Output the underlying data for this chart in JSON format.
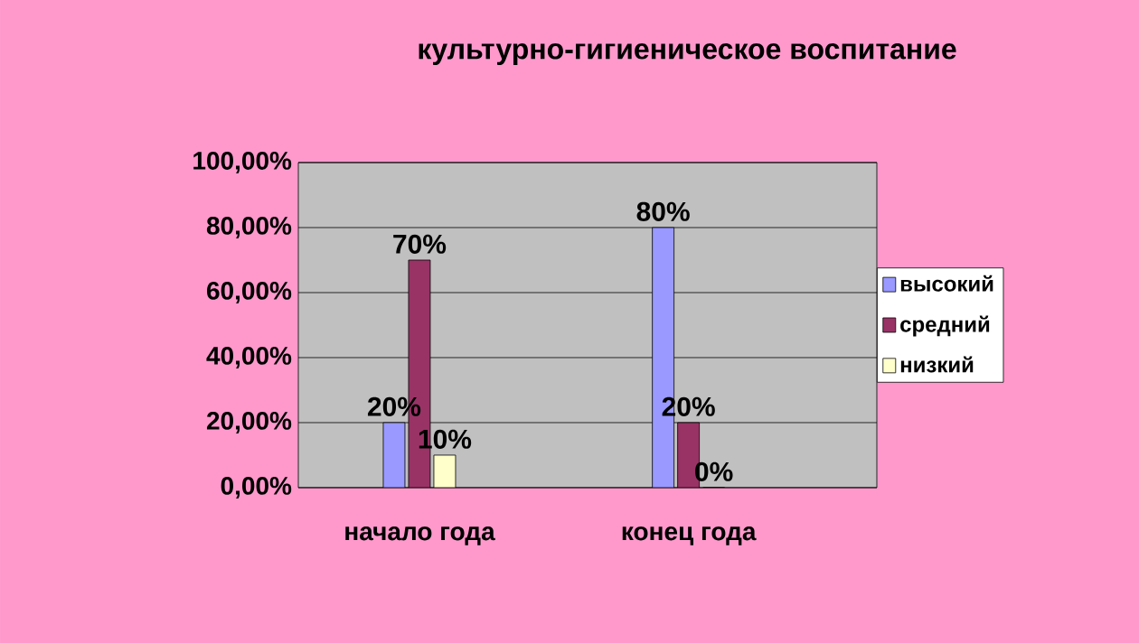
{
  "chart_data": {
    "type": "bar",
    "title": "культурно-гигиеническое воспитание",
    "categories": [
      "начало года",
      "конец года"
    ],
    "series": [
      {
        "name": "высокий",
        "color": "#9999ff",
        "values": [
          20,
          80
        ],
        "value_labels": [
          "20%",
          "80%"
        ]
      },
      {
        "name": "средний",
        "color": "#993366",
        "values": [
          70,
          20
        ],
        "value_labels": [
          "70%",
          "20%"
        ]
      },
      {
        "name": "низкий",
        "color": "#ffffcc",
        "values": [
          10,
          0
        ],
        "value_labels": [
          "10%",
          "0%"
        ]
      }
    ],
    "ylim": [
      0,
      100
    ],
    "yticks": [
      {
        "value": 0,
        "label": "0,00%"
      },
      {
        "value": 20,
        "label": "20,00%"
      },
      {
        "value": 40,
        "label": "40,00%"
      },
      {
        "value": 60,
        "label": "60,00%"
      },
      {
        "value": 80,
        "label": "80,00%"
      },
      {
        "value": 100,
        "label": "100,00%"
      }
    ],
    "grid": "y",
    "legend": "right"
  }
}
